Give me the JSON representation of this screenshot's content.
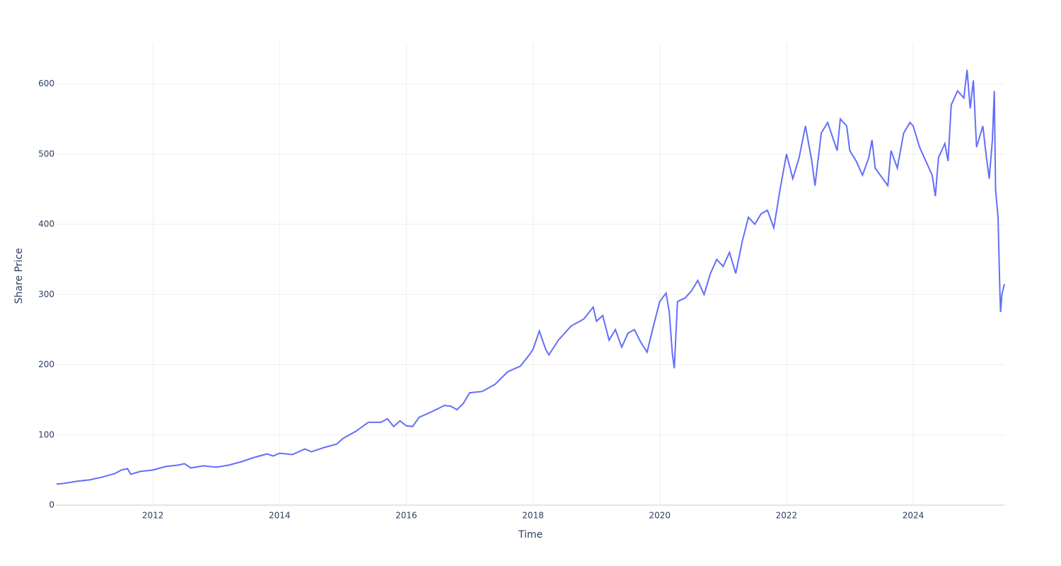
{
  "chart_data": {
    "type": "line",
    "x_label": "Time",
    "y_label": "Share Price",
    "x": [
      2010.48,
      2010.6,
      2010.8,
      2011.0,
      2011.2,
      2011.4,
      2011.5,
      2011.6,
      2011.65,
      2011.8,
      2012.0,
      2012.2,
      2012.4,
      2012.5,
      2012.6,
      2012.8,
      2013.0,
      2013.2,
      2013.4,
      2013.6,
      2013.8,
      2013.9,
      2014.0,
      2014.2,
      2014.4,
      2014.5,
      2014.7,
      2014.9,
      2015.0,
      2015.2,
      2015.4,
      2015.6,
      2015.7,
      2015.8,
      2015.9,
      2016.0,
      2016.1,
      2016.2,
      2016.4,
      2016.6,
      2016.7,
      2016.8,
      2016.9,
      2017.0,
      2017.2,
      2017.4,
      2017.6,
      2017.8,
      2017.95,
      2018.0,
      2018.1,
      2018.2,
      2018.25,
      2018.4,
      2018.6,
      2018.8,
      2018.95,
      2019.0,
      2019.1,
      2019.2,
      2019.3,
      2019.4,
      2019.5,
      2019.6,
      2019.7,
      2019.8,
      2019.9,
      2020.0,
      2020.1,
      2020.15,
      2020.2,
      2020.23,
      2020.28,
      2020.4,
      2020.5,
      2020.6,
      2020.7,
      2020.8,
      2020.9,
      2021.0,
      2021.1,
      2021.2,
      2021.3,
      2021.4,
      2021.5,
      2021.6,
      2021.7,
      2021.8,
      2021.9,
      2022.0,
      2022.1,
      2022.2,
      2022.3,
      2022.4,
      2022.45,
      2022.55,
      2022.65,
      2022.8,
      2022.85,
      2022.95,
      2023.0,
      2023.1,
      2023.2,
      2023.3,
      2023.35,
      2023.4,
      2023.6,
      2023.65,
      2023.75,
      2023.85,
      2023.95,
      2024.0,
      2024.1,
      2024.2,
      2024.3,
      2024.35,
      2024.4,
      2024.5,
      2024.55,
      2024.6,
      2024.7,
      2024.8,
      2024.85,
      2024.9,
      2024.95,
      2025.0,
      2025.1,
      2025.15,
      2025.2,
      2025.25,
      2025.28,
      2025.3,
      2025.34,
      2025.37,
      2025.38,
      2025.4,
      2025.44
    ],
    "series": [
      {
        "name": "Share Price",
        "color": "#636efa",
        "values": [
          30,
          31,
          34,
          36,
          40,
          45,
          50,
          52,
          44,
          48,
          50,
          55,
          57,
          59,
          53,
          56,
          54,
          57,
          62,
          68,
          73,
          70,
          74,
          72,
          80,
          76,
          82,
          87,
          95,
          105,
          118,
          118,
          123,
          112,
          120,
          113,
          112,
          125,
          133,
          142,
          141,
          136,
          145,
          160,
          162,
          172,
          190,
          198,
          215,
          222,
          248,
          222,
          214,
          235,
          255,
          265,
          282,
          262,
          270,
          235,
          250,
          225,
          245,
          250,
          232,
          218,
          255,
          290,
          302,
          275,
          215,
          195,
          290,
          295,
          305,
          320,
          300,
          330,
          350,
          340,
          360,
          330,
          375,
          410,
          400,
          415,
          420,
          395,
          450,
          500,
          465,
          495,
          540,
          490,
          455,
          530,
          545,
          505,
          550,
          540,
          505,
          490,
          470,
          495,
          520,
          480,
          455,
          505,
          480,
          530,
          545,
          540,
          510,
          490,
          470,
          440,
          495,
          515,
          490,
          570,
          590,
          580,
          620,
          565,
          605,
          510,
          540,
          500,
          465,
          520,
          590,
          450,
          410,
          300,
          275,
          300,
          315
        ]
      }
    ],
    "xlim": [
      2010.48,
      2025.44
    ],
    "xticks": [
      2012,
      2014,
      2016,
      2018,
      2020,
      2022,
      2024
    ],
    "ylim": [
      0,
      659
    ],
    "yticks": [
      0,
      100,
      200,
      300,
      400,
      500,
      600
    ],
    "grid": true
  }
}
